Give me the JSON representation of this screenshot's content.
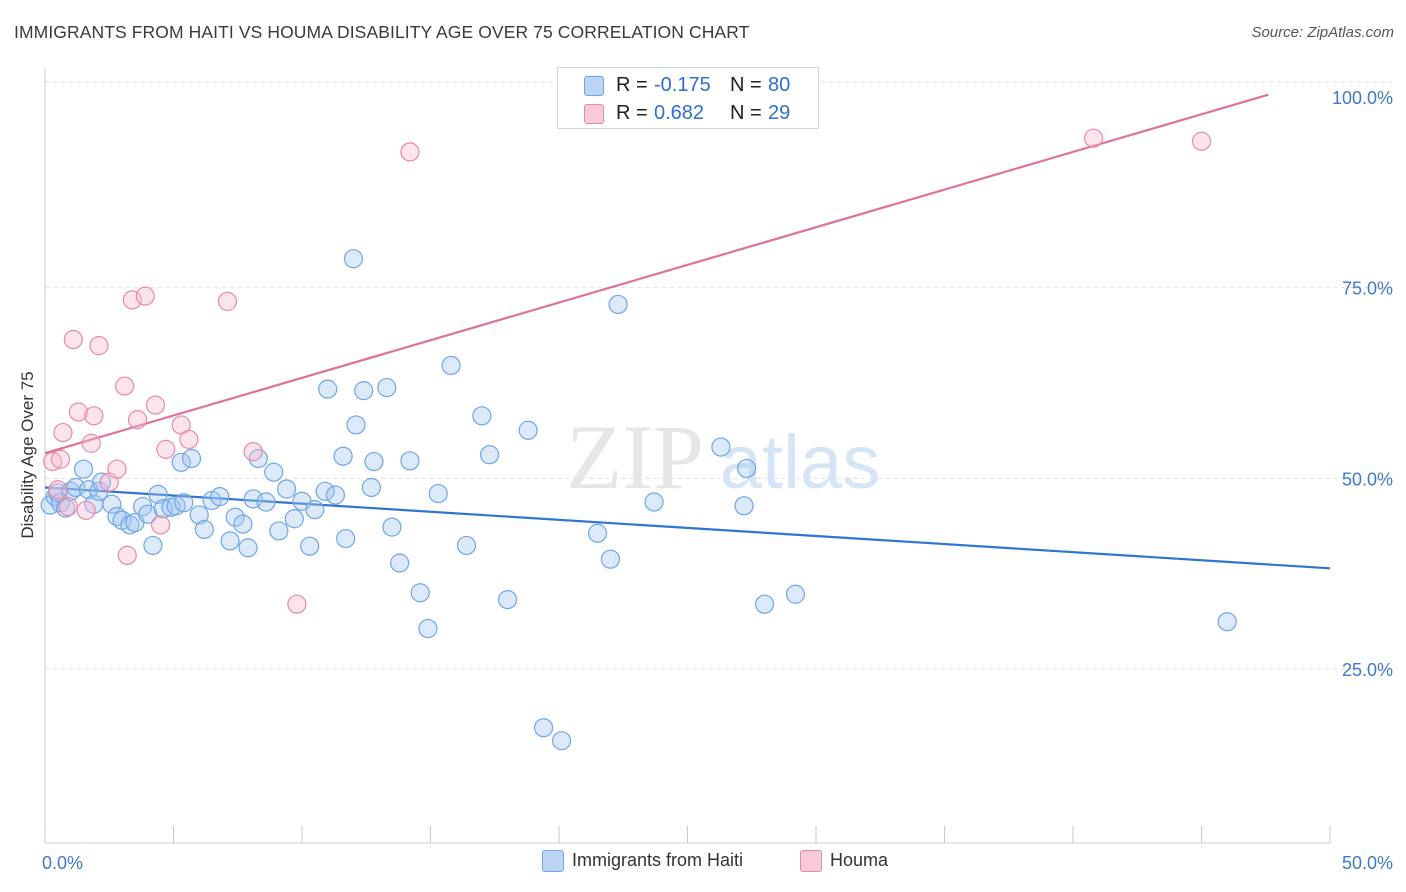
{
  "title": "IMMIGRANTS FROM HAITI VS HOUMA DISABILITY AGE OVER 75 CORRELATION CHART",
  "source": "Source: ZipAtlas.com",
  "watermark": {
    "zip": "ZIP",
    "atlas": "atlas"
  },
  "legend": {
    "r_label": "R =",
    "n_label": "N =",
    "series": [
      {
        "name": "Immigrants from Haiti",
        "r": "-0.175",
        "n": "80",
        "color": "#6fa6e8",
        "fill": "#bcd5f5"
      },
      {
        "name": "Houma",
        "r": "0.682",
        "n": "29",
        "color": "#e889a8",
        "fill": "#f8c9d7"
      }
    ]
  },
  "chart_data": {
    "type": "scatter",
    "title": "IMMIGRANTS FROM HAITI VS HOUMA DISABILITY AGE OVER 75 CORRELATION CHART",
    "xlabel": "",
    "ylabel": "Disability Age Over 75",
    "xlim": [
      0,
      50
    ],
    "ylim": [
      0,
      102
    ],
    "x_tick_labels": {
      "left": "0.0%",
      "right": "50.0%"
    },
    "y_ticks": [
      {
        "value": 25,
        "label": "25.0%"
      },
      {
        "value": 50,
        "label": "50.0%"
      },
      {
        "value": 75,
        "label": "75.0%"
      },
      {
        "value": 100,
        "label": "100.0%"
      }
    ],
    "grid": true,
    "series": [
      {
        "name": "Immigrants from Haiti",
        "color": "#2f74d0",
        "trend": {
          "x": [
            0,
            50
          ],
          "y": [
            48.8,
            38.2
          ]
        },
        "points": [
          [
            0.2,
            46.5
          ],
          [
            0.4,
            47.6
          ],
          [
            0.5,
            48.1
          ],
          [
            0.6,
            46.8
          ],
          [
            0.8,
            46.1
          ],
          [
            1.0,
            48.3
          ],
          [
            1.2,
            48.8
          ],
          [
            1.5,
            51.2
          ],
          [
            1.7,
            48.5
          ],
          [
            1.9,
            46.6
          ],
          [
            2.1,
            48.3
          ],
          [
            2.2,
            49.5
          ],
          [
            2.6,
            46.6
          ],
          [
            2.8,
            45.0
          ],
          [
            3.0,
            44.5
          ],
          [
            3.3,
            43.9
          ],
          [
            3.5,
            44.2
          ],
          [
            3.8,
            46.3
          ],
          [
            4.0,
            45.3
          ],
          [
            4.2,
            41.2
          ],
          [
            4.4,
            47.9
          ],
          [
            4.6,
            46.0
          ],
          [
            4.9,
            46.2
          ],
          [
            5.1,
            46.4
          ],
          [
            5.3,
            52.1
          ],
          [
            5.4,
            46.8
          ],
          [
            5.7,
            52.6
          ],
          [
            6.0,
            45.2
          ],
          [
            6.2,
            43.3
          ],
          [
            6.5,
            47.1
          ],
          [
            6.8,
            47.6
          ],
          [
            7.2,
            41.8
          ],
          [
            7.4,
            44.9
          ],
          [
            7.7,
            44.0
          ],
          [
            7.9,
            40.9
          ],
          [
            8.1,
            47.3
          ],
          [
            8.3,
            52.6
          ],
          [
            8.6,
            46.9
          ],
          [
            8.9,
            50.8
          ],
          [
            9.1,
            43.1
          ],
          [
            9.4,
            48.6
          ],
          [
            9.7,
            44.7
          ],
          [
            10.0,
            47.0
          ],
          [
            10.3,
            41.1
          ],
          [
            10.5,
            45.9
          ],
          [
            10.9,
            48.3
          ],
          [
            11.0,
            61.7
          ],
          [
            11.3,
            47.8
          ],
          [
            11.6,
            52.9
          ],
          [
            11.7,
            42.1
          ],
          [
            12.1,
            57.0
          ],
          [
            12.4,
            61.5
          ],
          [
            12.7,
            48.8
          ],
          [
            12.8,
            52.2
          ],
          [
            13.3,
            61.9
          ],
          [
            13.5,
            43.6
          ],
          [
            13.8,
            38.9
          ],
          [
            14.2,
            52.3
          ],
          [
            14.6,
            35.0
          ],
          [
            14.9,
            30.3
          ],
          [
            15.3,
            48.0
          ],
          [
            15.8,
            64.8
          ],
          [
            16.4,
            41.2
          ],
          [
            17.0,
            58.2
          ],
          [
            17.3,
            53.1
          ],
          [
            18.0,
            34.1
          ],
          [
            18.8,
            56.3
          ],
          [
            19.4,
            17.3
          ],
          [
            20.1,
            15.6
          ],
          [
            21.5,
            42.8
          ],
          [
            22.0,
            39.4
          ],
          [
            22.3,
            72.8
          ],
          [
            23.7,
            46.9
          ],
          [
            26.3,
            54.1
          ],
          [
            27.3,
            51.3
          ],
          [
            27.2,
            46.4
          ],
          [
            28.0,
            33.5
          ],
          [
            29.2,
            34.8
          ],
          [
            46.0,
            31.2
          ],
          [
            12.0,
            78.8
          ]
        ]
      },
      {
        "name": "Houma",
        "color": "#e07198",
        "trend": {
          "x": [
            0,
            47.6
          ],
          "y": [
            53.3,
            100.3
          ]
        },
        "points": [
          [
            0.3,
            52.2
          ],
          [
            0.5,
            48.5
          ],
          [
            0.6,
            52.5
          ],
          [
            0.7,
            56.0
          ],
          [
            0.9,
            46.3
          ],
          [
            1.1,
            68.2
          ],
          [
            1.3,
            58.7
          ],
          [
            1.8,
            54.6
          ],
          [
            1.9,
            58.2
          ],
          [
            2.1,
            67.4
          ],
          [
            2.5,
            49.5
          ],
          [
            2.8,
            51.2
          ],
          [
            3.1,
            62.1
          ],
          [
            3.2,
            39.9
          ],
          [
            3.4,
            73.4
          ],
          [
            3.6,
            57.7
          ],
          [
            3.9,
            73.9
          ],
          [
            4.3,
            59.6
          ],
          [
            4.5,
            43.9
          ],
          [
            4.7,
            53.8
          ],
          [
            5.3,
            57.0
          ],
          [
            5.6,
            55.1
          ],
          [
            7.1,
            73.2
          ],
          [
            8.1,
            53.5
          ],
          [
            9.8,
            33.5
          ],
          [
            14.2,
            92.8
          ],
          [
            40.8,
            94.6
          ],
          [
            45.0,
            94.2
          ],
          [
            1.6,
            45.8
          ]
        ]
      }
    ]
  }
}
